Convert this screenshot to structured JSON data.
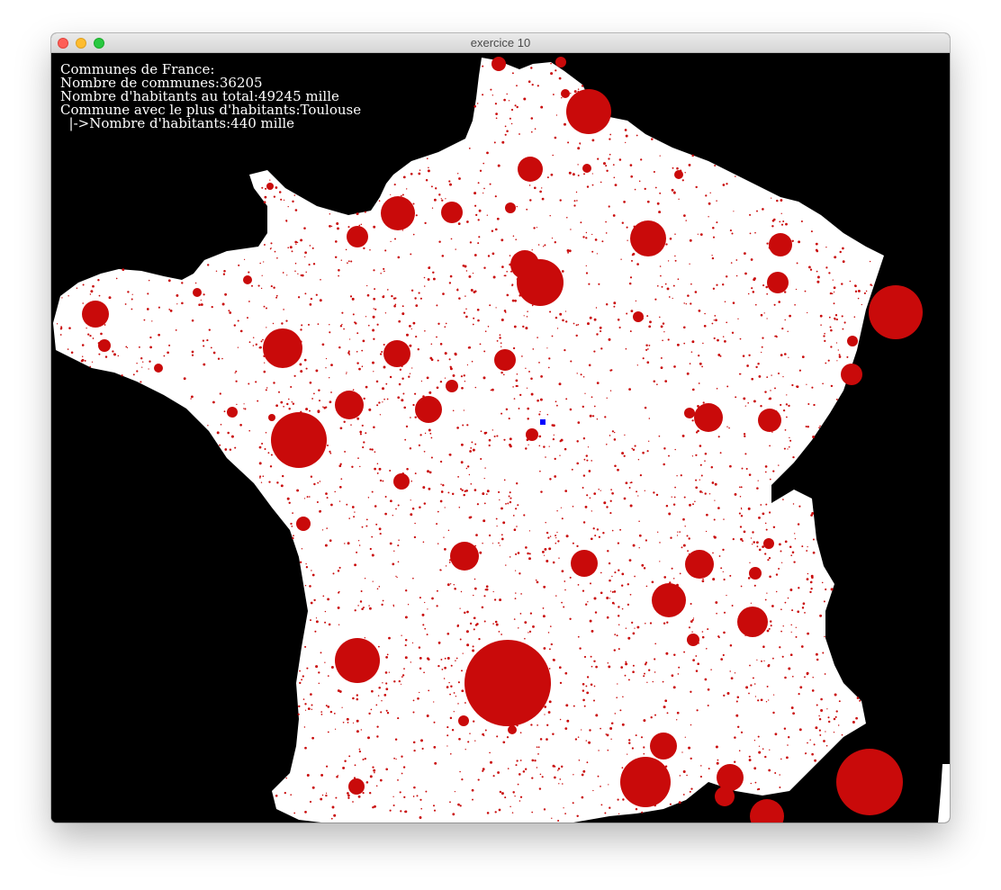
{
  "window": {
    "title": "exercice 10"
  },
  "info": {
    "line1": "Communes de France:",
    "line2": "Nombre de communes:36205",
    "line3": "Nombre d'habitants au total:49245 mille",
    "line4": "Commune avec le plus d'habitants:Toulouse",
    "line5": "  |->Nombre d'habitants:440 mille"
  },
  "colors": {
    "background": "#000000",
    "land": "#ffffff",
    "commune": "#c90a0a",
    "marker": "#0000ff"
  }
}
